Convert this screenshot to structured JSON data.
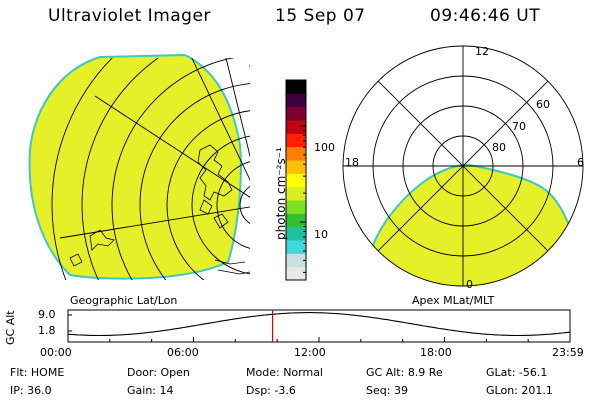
{
  "header": {
    "instrument": "Ultraviolet Imager",
    "date": "15 Sep 07",
    "time": "09:46:46 UT"
  },
  "left_panel": {
    "caption": "Geographic Lat/Lon"
  },
  "right_panel": {
    "caption": "Apex MLat/MLT",
    "mlt_labels": [
      "12",
      "18",
      "6",
      "0"
    ],
    "mlat_labels": [
      "60",
      "70",
      "80"
    ]
  },
  "colorbar": {
    "label": "photon cm⁻²s⁻¹",
    "scale": "log",
    "tick_labels": [
      "100",
      "10"
    ],
    "colors": [
      "#e8e8e8",
      "#c8e0e0",
      "#40d8d8",
      "#20c0a0",
      "#30c030",
      "#80e020",
      "#d8f020",
      "#ffff00",
      "#ffc000",
      "#ff8000",
      "#ff2000",
      "#c00010",
      "#800030",
      "#400040",
      "#000000"
    ]
  },
  "image_color": "#e6f028",
  "image_edge_color": "#3ec8c0",
  "orbit_plot": {
    "ylabel": "GC Alt",
    "y_ticks": [
      "9.0",
      "1.8"
    ],
    "x_ticks": [
      "00:00",
      "06:00",
      "12:00",
      "18:00",
      "23:59"
    ],
    "marker_color": "#dd0000",
    "marker_time_hours": 9.78
  },
  "info": {
    "flt_label": "Flt:",
    "flt_value": "HOME",
    "door_label": "Door:",
    "door_value": "Open",
    "mode_label": "Mode:",
    "mode_value": "Normal",
    "gcalt_label": "GC Alt:",
    "gcalt_value": "8.9 Re",
    "glat_label": "GLat:",
    "glat_value": "-56.1",
    "ip_label": "IP:",
    "ip_value": "36.0",
    "gain_label": "Gain:",
    "gain_value": "14",
    "dsp_label": "Dsp:",
    "dsp_value": "-3.6",
    "seq_label": "Seq:",
    "seq_value": "39",
    "glon_label": "GLon:",
    "glon_value": "201.1"
  }
}
